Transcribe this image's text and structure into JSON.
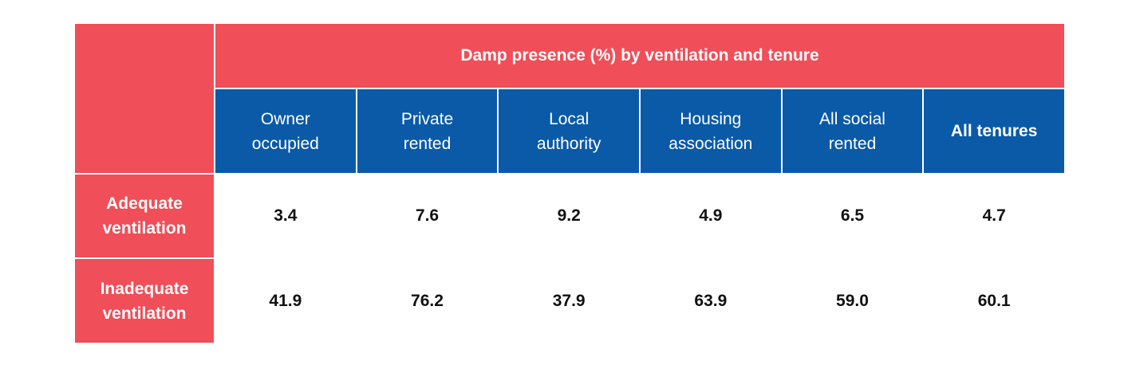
{
  "chart_data": {
    "type": "table",
    "title": "Damp presence (%) by ventilation and tenure",
    "columns": [
      "Owner occupied",
      "Private rented",
      "Local authority",
      "Housing association",
      "All social rented",
      "All tenures"
    ],
    "columns_display": [
      [
        "Owner",
        "occupied"
      ],
      [
        "Private",
        "rented"
      ],
      [
        "Local",
        "authority"
      ],
      [
        "Housing",
        "association"
      ],
      [
        "All social",
        "rented"
      ],
      [
        "All tenures"
      ]
    ],
    "rows": [
      {
        "label": "Adequate ventilation",
        "label_display": [
          "Adequate",
          "ventilation"
        ],
        "values": [
          "3.4",
          "7.6",
          "9.2",
          "4.9",
          "6.5",
          "4.7"
        ]
      },
      {
        "label": "Inadequate ventilation",
        "label_display": [
          "Inadequate",
          "ventilation"
        ],
        "values": [
          "41.9",
          "76.2",
          "37.9",
          "63.9",
          "59.0",
          "60.1"
        ]
      }
    ]
  },
  "colors": {
    "header_red": "#f04e58",
    "header_blue": "#0a5aa8",
    "text_dark": "#111111"
  }
}
